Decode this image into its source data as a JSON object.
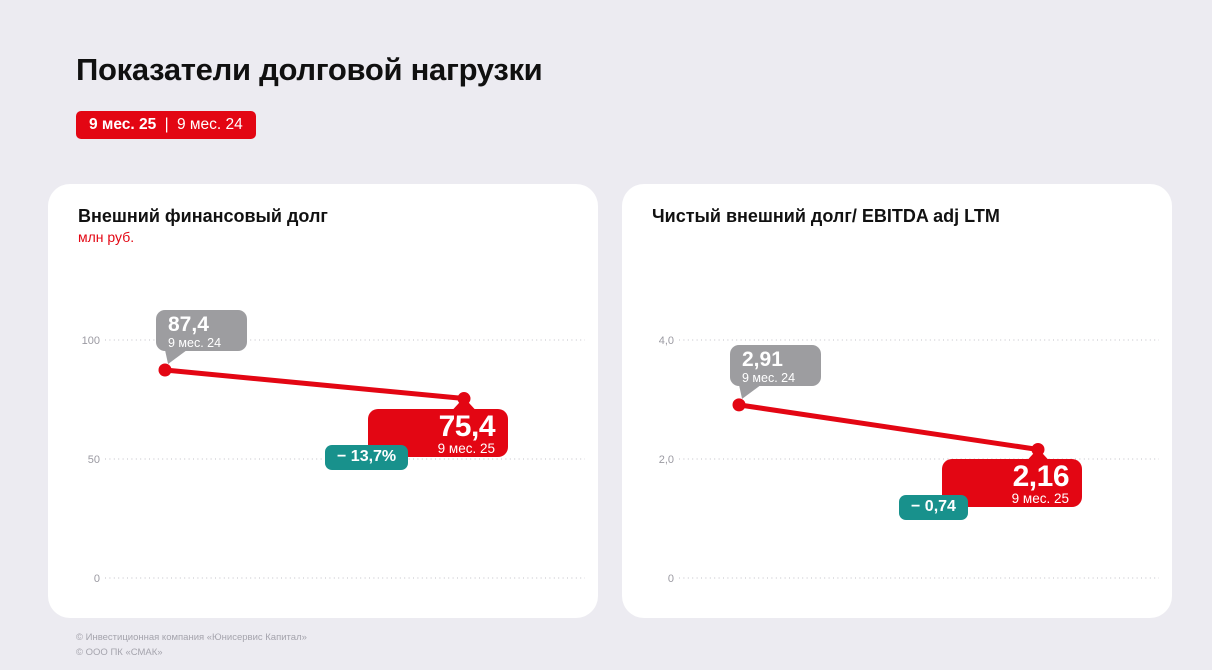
{
  "header": {
    "title": "Показатели долговой нагрузки",
    "badge": {
      "current": "9 мес. 25",
      "separator": "|",
      "previous": "9 мес. 24"
    }
  },
  "colors": {
    "background": "#ecebf1",
    "card": "#ffffff",
    "accent_red": "#e30613",
    "previous_gray": "#9d9da0",
    "change_teal": "#18918c",
    "tick_gray": "#9b9aa2"
  },
  "chart_data": [
    {
      "type": "line",
      "title": "Внешний финансовый долг",
      "unit": "млн руб.",
      "categories": [
        "9 мес. 24",
        "9 мес. 25"
      ],
      "values": [
        87.4,
        75.4
      ],
      "value_labels": [
        "87,4",
        "75,4"
      ],
      "change_label": "− 13,7%",
      "ylim": [
        0,
        100
      ],
      "yticks": [
        {
          "label": "100",
          "value": 100
        },
        {
          "label": "50",
          "value": 50
        },
        {
          "label": "0",
          "value": 0
        }
      ],
      "grid": "dotted horizontal",
      "legend": "none"
    },
    {
      "type": "line",
      "title": "Чистый внешний долг/ EBITDA adj LTM",
      "unit": "",
      "categories": [
        "9 мес. 24",
        "9 мес. 25"
      ],
      "values": [
        2.91,
        2.16
      ],
      "value_labels": [
        "2,91",
        "2,16"
      ],
      "change_label": "− 0,74",
      "ylim": [
        0,
        4
      ],
      "yticks": [
        {
          "label": "4,0",
          "value": 4
        },
        {
          "label": "2,0",
          "value": 2
        },
        {
          "label": "0",
          "value": 0
        }
      ],
      "grid": "dotted horizontal",
      "legend": "none"
    }
  ],
  "footer": {
    "lines": [
      "© Инвестиционная компания «Юнисервис Капитал»",
      "© ООО ПК «СМАК»"
    ]
  }
}
